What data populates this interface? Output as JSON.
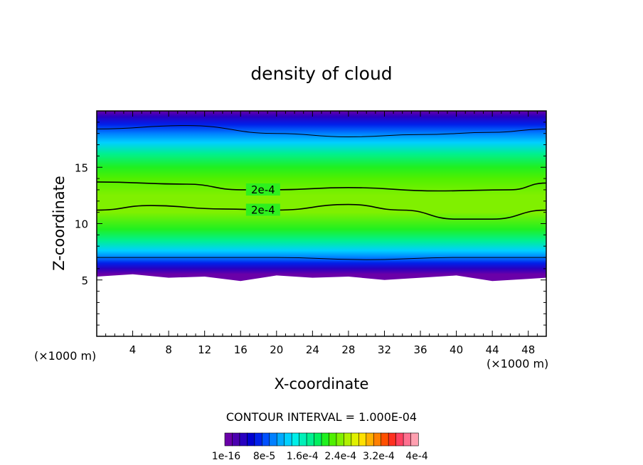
{
  "chart_data": {
    "type": "heatmap",
    "title": "density of cloud",
    "xlabel": "X-coordinate",
    "ylabel": "Z-coordinate",
    "x_unit": "(×1000 m)",
    "y_unit": "(×1000 m)",
    "xlim": [
      0,
      50
    ],
    "ylim": [
      0,
      20
    ],
    "x_ticks": [
      "4",
      "8",
      "12",
      "16",
      "20",
      "24",
      "28",
      "32",
      "36",
      "40",
      "44",
      "48"
    ],
    "y_ticks": [
      "5",
      "10",
      "15"
    ],
    "contour_interval_text": "CONTOUR INTERVAL = 1.000E-04",
    "colorbar_labels": [
      "1e-16",
      "8e-5",
      "1.6e-4",
      "2.4e-4",
      "3.2e-4",
      "4e-4"
    ],
    "colorbar_colors": [
      "#6a00a8",
      "#4b00b0",
      "#2800c0",
      "#0000d0",
      "#0020ea",
      "#0050ff",
      "#0080ff",
      "#00aaff",
      "#00d0ff",
      "#00eee8",
      "#00f0b8",
      "#00f090",
      "#00f060",
      "#20f020",
      "#50f000",
      "#80f000",
      "#b0f000",
      "#e0f000",
      "#ffe000",
      "#ffb000",
      "#ff8000",
      "#ff5000",
      "#ff3020",
      "#ff4060",
      "#ff7090",
      "#ffa0b0"
    ],
    "contour_labels": [
      "2e-4",
      "2e-4"
    ],
    "contours": [
      {
        "label": "",
        "points": [
          [
            0,
            18.4
          ],
          [
            10,
            18.7
          ],
          [
            20,
            18.0
          ],
          [
            28,
            17.7
          ],
          [
            36,
            17.9
          ],
          [
            44,
            18.1
          ],
          [
            50,
            18.4
          ]
        ]
      },
      {
        "label": "2e-4",
        "points": [
          [
            0,
            13.7
          ],
          [
            10,
            13.5
          ],
          [
            16,
            13.0
          ],
          [
            20,
            13.0
          ],
          [
            28,
            13.2
          ],
          [
            38,
            12.9
          ],
          [
            46,
            13.0
          ],
          [
            50,
            13.6
          ]
        ]
      },
      {
        "label": "2e-4",
        "points": [
          [
            0,
            11.2
          ],
          [
            6,
            11.6
          ],
          [
            14,
            11.3
          ],
          [
            20,
            11.2
          ],
          [
            28,
            11.7
          ],
          [
            34,
            11.2
          ],
          [
            40,
            10.4
          ],
          [
            44,
            10.4
          ],
          [
            50,
            11.2
          ]
        ]
      },
      {
        "label": "",
        "points": [
          [
            0,
            7.0
          ],
          [
            10,
            7.0
          ],
          [
            20,
            7.0
          ],
          [
            30,
            6.8
          ],
          [
            40,
            7.0
          ],
          [
            50,
            7.0
          ]
        ]
      }
    ],
    "cloud_base": [
      [
        0,
        5.3
      ],
      [
        4,
        5.5
      ],
      [
        8,
        5.2
      ],
      [
        12,
        5.3
      ],
      [
        16,
        4.9
      ],
      [
        20,
        5.4
      ],
      [
        24,
        5.2
      ],
      [
        28,
        5.3
      ],
      [
        32,
        5.0
      ],
      [
        36,
        5.2
      ],
      [
        40,
        5.4
      ],
      [
        44,
        4.9
      ],
      [
        48,
        5.1
      ],
      [
        50,
        5.2
      ]
    ],
    "layers": [
      {
        "z": 20.0,
        "v": 0.0
      },
      {
        "z": 19.5,
        "v": 0.03
      },
      {
        "z": 18.8,
        "v": 0.07
      },
      {
        "z": 18.0,
        "v": 0.1
      },
      {
        "z": 17.2,
        "v": 0.13
      },
      {
        "z": 16.2,
        "v": 0.17
      },
      {
        "z": 15.0,
        "v": 0.2
      },
      {
        "z": 14.0,
        "v": 0.23
      },
      {
        "z": 12.5,
        "v": 0.245
      },
      {
        "z": 11.0,
        "v": 0.24
      },
      {
        "z": 9.5,
        "v": 0.21
      },
      {
        "z": 8.5,
        "v": 0.17
      },
      {
        "z": 7.6,
        "v": 0.13
      },
      {
        "z": 7.0,
        "v": 0.09
      },
      {
        "z": 6.5,
        "v": 0.06
      },
      {
        "z": 6.0,
        "v": 0.03
      },
      {
        "z": 5.5,
        "v": 0.005
      }
    ]
  }
}
